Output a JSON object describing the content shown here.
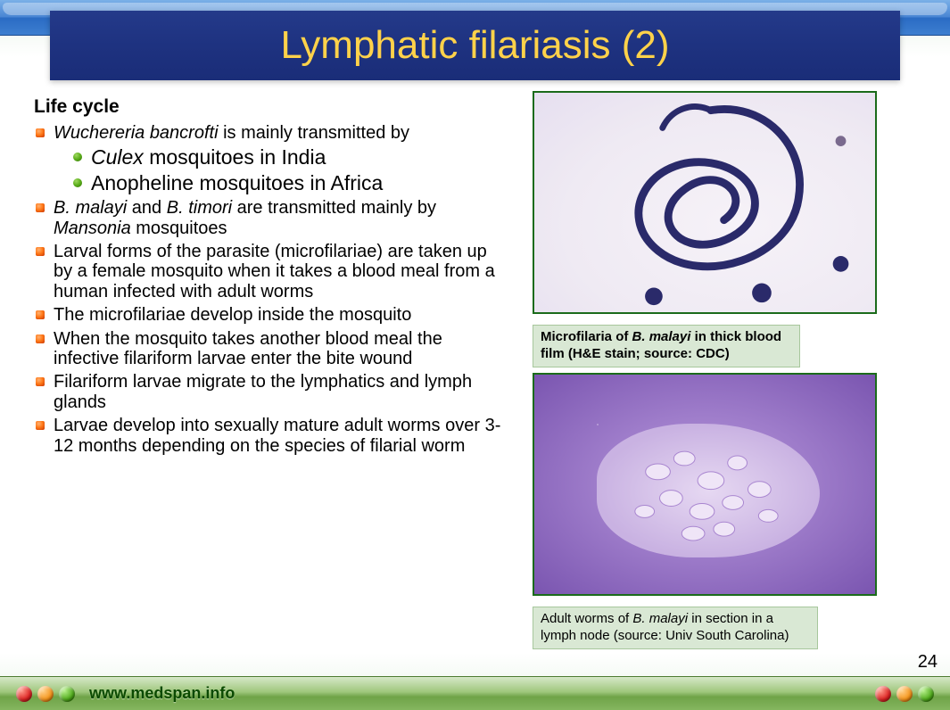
{
  "title": "Lymphatic filariasis (2)",
  "title_color": "#ffd24a",
  "title_bg": "#1e3280",
  "section_heading": "Life cycle",
  "bullets": [
    {
      "html": "<em>Wuchereria bancrofti</em> is mainly transmitted by"
    },
    {
      "sub": [
        "<em>Culex</em> mosquitoes in India",
        "Anopheline mosquitoes in Africa"
      ]
    },
    {
      "html": "<em>B. malayi</em> and <em>B. timori</em> are transmitted mainly by <em>Mansonia</em> mosquitoes"
    },
    {
      "html": "Larval forms of the parasite (microfilariae) are taken up by a female mosquito when it takes a blood meal from a human infected with adult worms"
    },
    {
      "html": "The microfilariae develop inside the mosquito"
    },
    {
      "html": "When the mosquito takes another blood meal the infective filariform larvae enter the bite wound"
    },
    {
      "html": "Filariform larvae migrate to the lymphatics and lymph glands"
    },
    {
      "html": "Larvae develop into sexually mature adult worms over 3-12 months depending on the species of filarial worm"
    }
  ],
  "figure1": {
    "caption_pre": "Microfilaria of ",
    "caption_ital": "B. malayi",
    "caption_post": " in thick blood film (H&E stain; source: CDC)",
    "stroke": "#2a2a6a",
    "bg": "#efeaf3"
  },
  "figure2": {
    "caption_pre": "Adult worms of ",
    "caption_ital": "B. malayi",
    "caption_post": " in section in a lymph node (source: Univ South Carolina)",
    "bg": "#8e6bc0"
  },
  "footer_text": "www.medspan.info",
  "page_number": "24",
  "chrome": {
    "top_gradient": [
      "#7ab0e8",
      "#4a86d4",
      "#2b6cc4",
      "#3d7ed0"
    ],
    "bottom_gradient": [
      "#d6e8c8",
      "#9fc77d",
      "#6fa348",
      "#85b65f"
    ],
    "dots": [
      "#d22",
      "#f5941a",
      "#4faa1a"
    ]
  }
}
